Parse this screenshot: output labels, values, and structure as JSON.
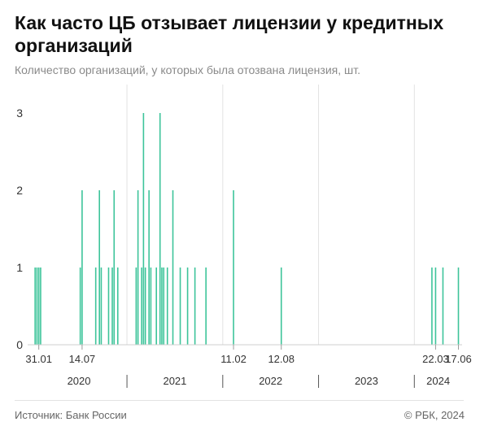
{
  "title": "Как часто ЦБ отзывает лицензии у кредитных организаций",
  "subtitle": "Количество организаций, у которых была отозвана лицензия, шт.",
  "source": "Источник: Банк России",
  "credit": "© РБК, 2024",
  "colors": {
    "bar": "#3dc49a",
    "grid": "#e2e2e2",
    "tick": "#9a9a9a",
    "text": "#333333"
  },
  "chart_data": {
    "type": "bar",
    "title": "Как часто ЦБ отзывает лицензии у кредитных организаций",
    "xlabel": "",
    "ylabel": "Количество организаций, у которых была отозвана лицензия, шт.",
    "x_axis": "date",
    "xlim": [
      "2020-01-01",
      "2024-07-01"
    ],
    "ylim": [
      0,
      3.3
    ],
    "yticks": [
      0,
      1,
      2,
      3
    ],
    "grid": true,
    "gridlines_at_years": [
      "2021-01-01",
      "2022-01-01",
      "2023-01-01",
      "2024-01-01"
    ],
    "date_labels": [
      "31.01",
      "14.07",
      "11.02",
      "12.08",
      "22.03",
      "17.06"
    ],
    "date_label_positions": [
      "2020-01-31",
      "2020-07-14",
      "2022-02-11",
      "2022-08-12",
      "2024-03-22",
      "2024-06-17"
    ],
    "years": [
      "2020",
      "2021",
      "2022",
      "2023",
      "2024"
    ],
    "year_ranges": [
      [
        "2020-01-01",
        "2021-01-01"
      ],
      [
        "2021-01-01",
        "2022-01-01"
      ],
      [
        "2022-01-01",
        "2023-01-01"
      ],
      [
        "2023-01-01",
        "2024-01-01"
      ],
      [
        "2024-01-01",
        "2024-07-01"
      ]
    ],
    "series": [
      {
        "points": [
          {
            "date": "2020-01-17",
            "value": 1
          },
          {
            "date": "2020-01-24",
            "value": 1
          },
          {
            "date": "2020-01-31",
            "value": 1
          },
          {
            "date": "2020-02-07",
            "value": 1
          },
          {
            "date": "2020-07-07",
            "value": 1
          },
          {
            "date": "2020-07-14",
            "value": 2
          },
          {
            "date": "2020-09-04",
            "value": 1
          },
          {
            "date": "2020-09-18",
            "value": 2
          },
          {
            "date": "2020-09-25",
            "value": 1
          },
          {
            "date": "2020-10-23",
            "value": 1
          },
          {
            "date": "2020-11-06",
            "value": 1
          },
          {
            "date": "2020-11-13",
            "value": 2
          },
          {
            "date": "2020-11-27",
            "value": 1
          },
          {
            "date": "2021-02-05",
            "value": 1
          },
          {
            "date": "2021-02-12",
            "value": 2
          },
          {
            "date": "2021-02-26",
            "value": 1
          },
          {
            "date": "2021-03-05",
            "value": 3
          },
          {
            "date": "2021-03-12",
            "value": 1
          },
          {
            "date": "2021-03-26",
            "value": 2
          },
          {
            "date": "2021-04-02",
            "value": 1
          },
          {
            "date": "2021-04-23",
            "value": 1
          },
          {
            "date": "2021-05-07",
            "value": 3
          },
          {
            "date": "2021-05-14",
            "value": 1
          },
          {
            "date": "2021-05-21",
            "value": 1
          },
          {
            "date": "2021-06-04",
            "value": 1
          },
          {
            "date": "2021-06-25",
            "value": 2
          },
          {
            "date": "2021-07-23",
            "value": 1
          },
          {
            "date": "2021-08-20",
            "value": 1
          },
          {
            "date": "2021-09-17",
            "value": 1
          },
          {
            "date": "2021-10-29",
            "value": 1
          },
          {
            "date": "2022-02-11",
            "value": 2
          },
          {
            "date": "2022-08-12",
            "value": 1
          },
          {
            "date": "2024-03-08",
            "value": 1
          },
          {
            "date": "2024-03-22",
            "value": 1
          },
          {
            "date": "2024-04-19",
            "value": 1
          },
          {
            "date": "2024-06-17",
            "value": 1
          }
        ]
      }
    ]
  }
}
